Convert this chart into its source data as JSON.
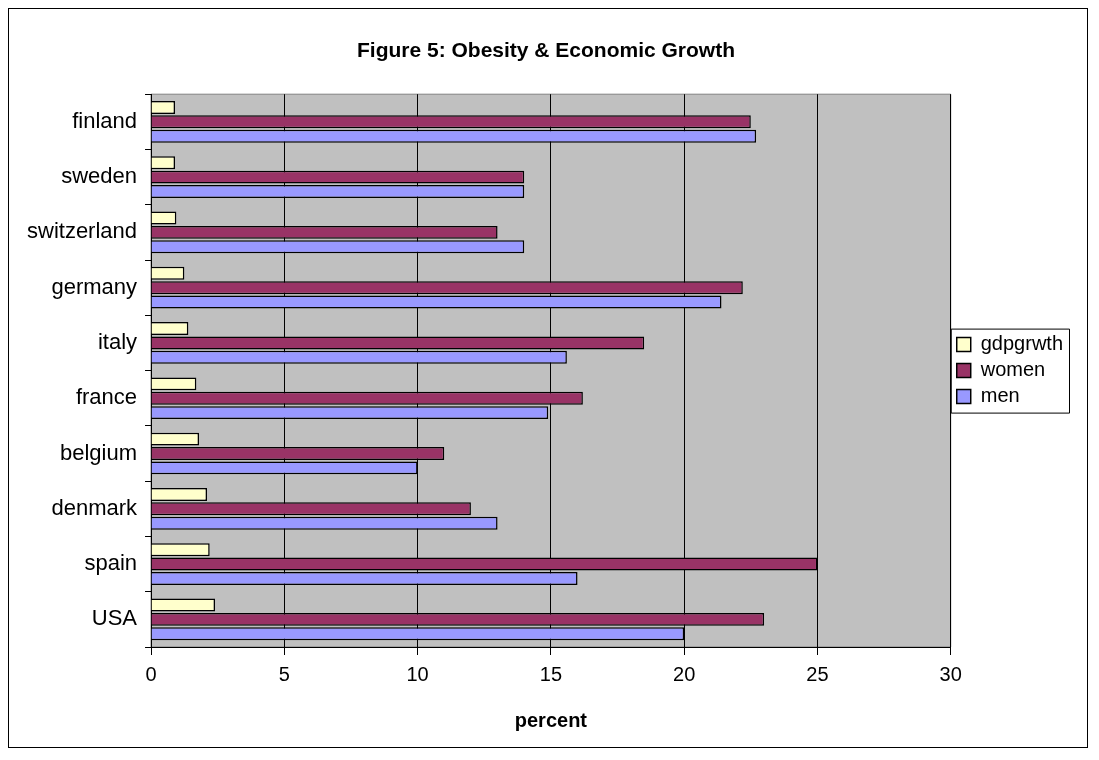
{
  "chart_data": {
    "type": "bar",
    "orientation": "horizontal",
    "title": "Figure 5: Obesity & Economic Growth",
    "xlabel": "percent",
    "categories": [
      "finland",
      "sweden",
      "switzerland",
      "germany",
      "italy",
      "france",
      "belgium",
      "denmark",
      "spain",
      "USA"
    ],
    "series": [
      {
        "name": "gdpgrwth",
        "color": "#ffffcc",
        "values": [
          0.9,
          0.9,
          0.95,
          1.25,
          1.4,
          1.7,
          1.8,
          2.1,
          2.2,
          2.4
        ]
      },
      {
        "name": "women",
        "color": "#993366",
        "values": [
          22.5,
          14,
          13,
          22.2,
          18.5,
          16.2,
          11,
          12,
          25,
          23
        ]
      },
      {
        "name": "men",
        "color": "#9999ff",
        "values": [
          22.7,
          14,
          14,
          21.4,
          15.6,
          14.9,
          10,
          13,
          16,
          20
        ]
      }
    ],
    "xlim": [
      0,
      30
    ],
    "xticks": [
      0,
      5,
      10,
      15,
      20,
      25,
      30
    ],
    "grid": "x",
    "legend": "right"
  }
}
